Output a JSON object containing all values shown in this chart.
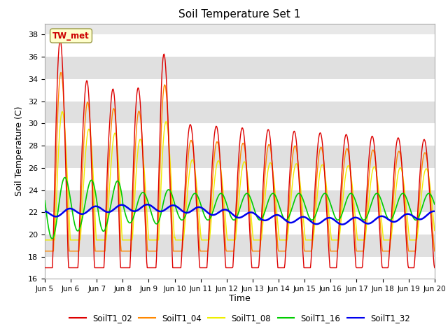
{
  "title": "Soil Temperature Set 1",
  "xlabel": "Time",
  "ylabel": "Soil Temperature (C)",
  "ylim": [
    16,
    39
  ],
  "yticks": [
    16,
    18,
    20,
    22,
    24,
    26,
    28,
    30,
    32,
    34,
    36,
    38
  ],
  "xtick_labels": [
    "Jun 5",
    "Jun 6",
    "Jun 7",
    "Jun 8",
    "Jun 9",
    "Jun 10",
    "Jun 11",
    "Jun 12",
    "Jun 13",
    "Jun 14",
    "Jun 15",
    "Jun 16",
    "Jun 17",
    "Jun 18",
    "Jun 19",
    "Jun 20"
  ],
  "colors": {
    "SoilT1_02": "#dd0000",
    "SoilT1_04": "#ff8800",
    "SoilT1_08": "#eeee00",
    "SoilT1_16": "#00cc00",
    "SoilT1_32": "#0000ee"
  },
  "legend_label": "TW_met",
  "bg_color": "#ffffff",
  "plot_bg": "#e8e8e8",
  "n_days": 15,
  "points_per_day": 48,
  "band_colors": [
    "#ffffff",
    "#e0e0e0"
  ]
}
